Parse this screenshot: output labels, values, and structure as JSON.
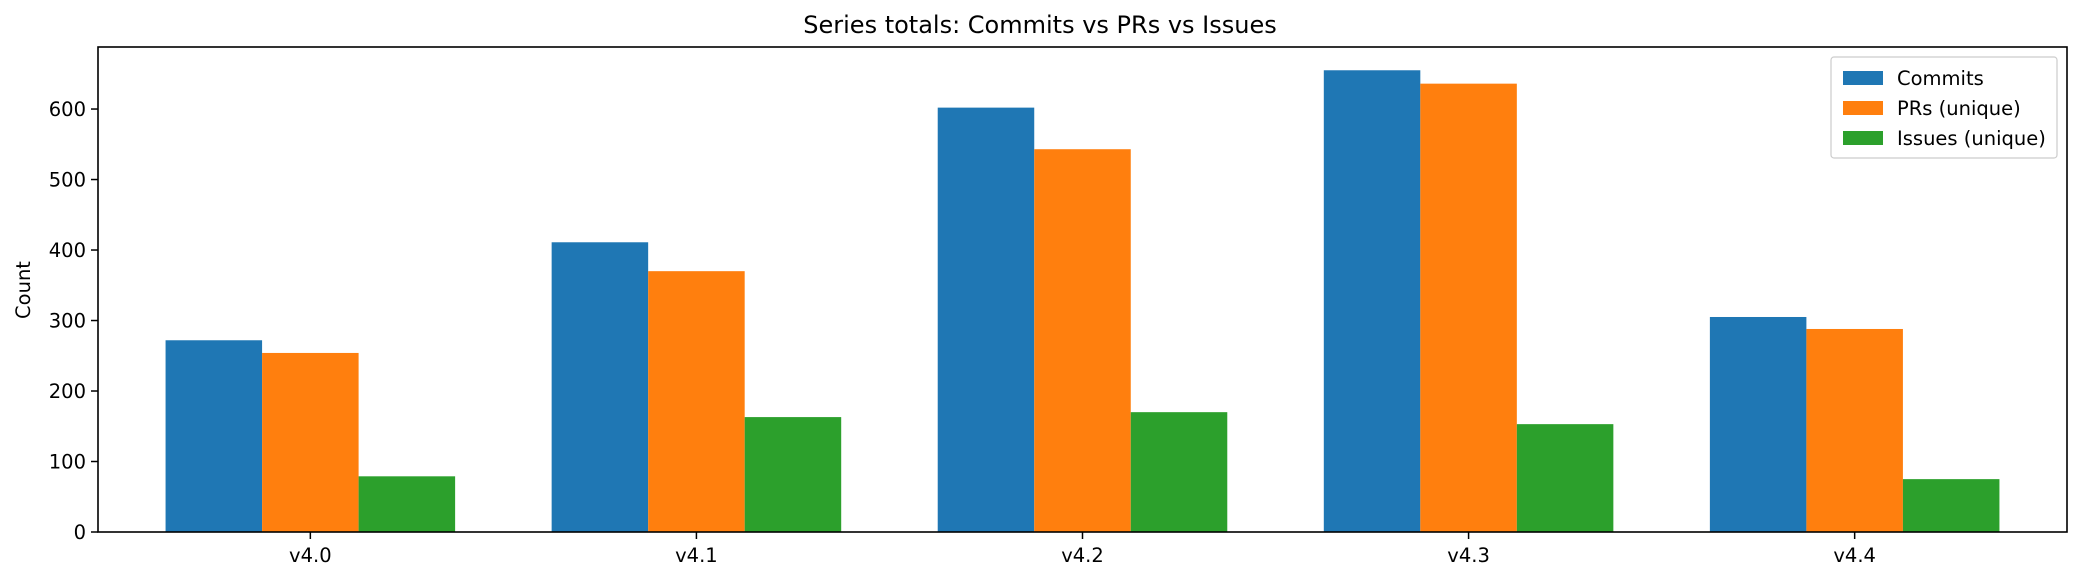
{
  "chart_data": {
    "type": "bar",
    "title": "Series totals: Commits vs PRs vs Issues",
    "xlabel": "",
    "ylabel": "Count",
    "categories": [
      "v4.0",
      "v4.1",
      "v4.2",
      "v4.3",
      "v4.4"
    ],
    "series": [
      {
        "name": "Commits",
        "color": "#1f77b4",
        "values": [
          272,
          411,
          602,
          655,
          305
        ]
      },
      {
        "name": "PRs (unique)",
        "color": "#ff7f0e",
        "values": [
          254,
          370,
          543,
          636,
          288
        ]
      },
      {
        "name": "Issues (unique)",
        "color": "#2ca02c",
        "values": [
          79,
          163,
          170,
          153,
          75
        ]
      }
    ],
    "ylim": [
      0,
      688
    ],
    "yticks": [
      0,
      100,
      200,
      300,
      400,
      500,
      600
    ],
    "grid": false,
    "legend": "top-right"
  }
}
